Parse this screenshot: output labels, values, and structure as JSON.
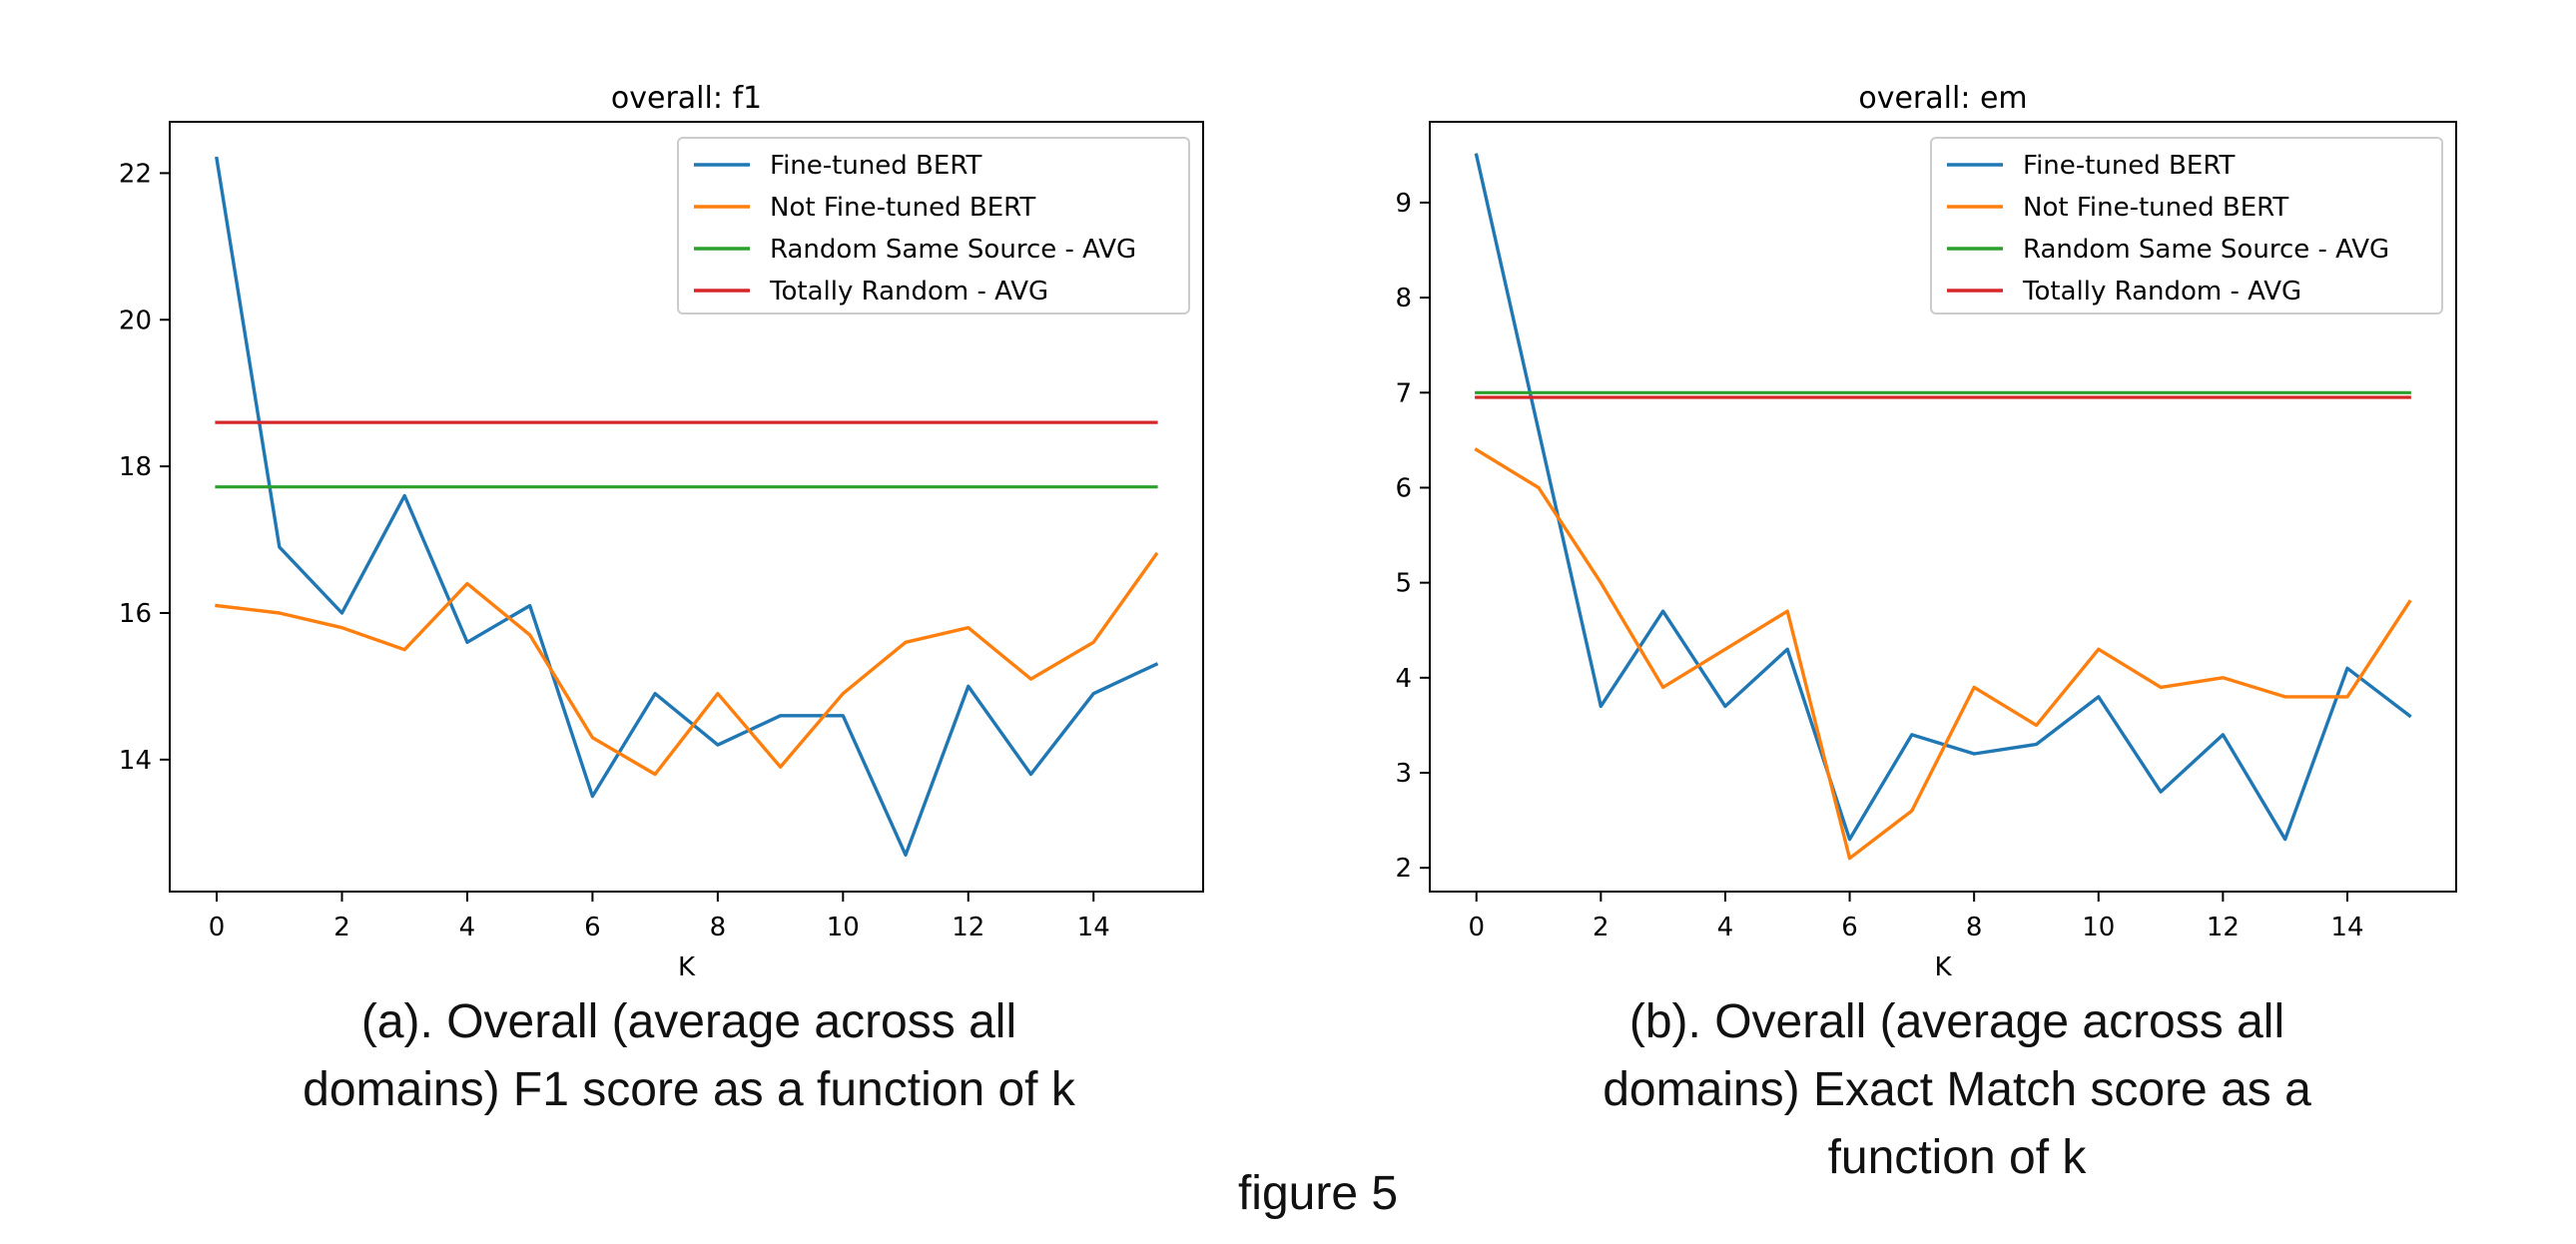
{
  "colors": {
    "fine_tuned": "#1f77b4",
    "not_fine_tuned": "#ff7f0e",
    "random_same_source": "#2ca02c",
    "totally_random": "#d62728"
  },
  "chart_data": [
    {
      "type": "line",
      "title": "overall: f1",
      "xlabel": "K",
      "ylabel": "",
      "xlim": [
        -0.75,
        15.75
      ],
      "ylim": [
        12.2,
        22.7
      ],
      "xticks": [
        0,
        2,
        4,
        6,
        8,
        10,
        12,
        14
      ],
      "yticks": [
        14,
        16,
        18,
        20,
        22
      ],
      "legend_position": "top-right",
      "grid": false,
      "x": [
        0,
        1,
        2,
        3,
        4,
        5,
        6,
        7,
        8,
        9,
        10,
        11,
        12,
        13,
        14,
        15
      ],
      "series": [
        {
          "name": "Fine-tuned BERT",
          "color_key": "fine_tuned",
          "values": [
            22.2,
            16.9,
            16.0,
            17.6,
            15.6,
            16.1,
            13.5,
            14.9,
            14.2,
            14.6,
            14.6,
            12.7,
            15.0,
            13.8,
            14.9,
            15.3
          ]
        },
        {
          "name": "Not Fine-tuned BERT",
          "color_key": "not_fine_tuned",
          "values": [
            16.1,
            16.0,
            15.8,
            15.5,
            16.4,
            15.7,
            14.3,
            13.8,
            14.9,
            13.9,
            14.9,
            15.6,
            15.8,
            15.1,
            15.6,
            16.8
          ]
        },
        {
          "name": "Random Same Source - AVG",
          "color_key": "random_same_source",
          "values": [
            17.72,
            17.72,
            17.72,
            17.72,
            17.72,
            17.72,
            17.72,
            17.72,
            17.72,
            17.72,
            17.72,
            17.72,
            17.72,
            17.72,
            17.72,
            17.72
          ]
        },
        {
          "name": "Totally Random - AVG",
          "color_key": "totally_random",
          "values": [
            18.6,
            18.6,
            18.6,
            18.6,
            18.6,
            18.6,
            18.6,
            18.6,
            18.6,
            18.6,
            18.6,
            18.6,
            18.6,
            18.6,
            18.6,
            18.6
          ]
        }
      ]
    },
    {
      "type": "line",
      "title": "overall: em",
      "xlabel": "K",
      "ylabel": "",
      "xlim": [
        -0.75,
        15.75
      ],
      "ylim": [
        1.75,
        9.85
      ],
      "xticks": [
        0,
        2,
        4,
        6,
        8,
        10,
        12,
        14
      ],
      "yticks": [
        2,
        3,
        4,
        5,
        6,
        7,
        8,
        9
      ],
      "legend_position": "top-right",
      "grid": false,
      "x": [
        0,
        1,
        2,
        3,
        4,
        5,
        6,
        7,
        8,
        9,
        10,
        11,
        12,
        13,
        14,
        15
      ],
      "series": [
        {
          "name": "Fine-tuned BERT",
          "color_key": "fine_tuned",
          "values": [
            9.5,
            6.6,
            3.7,
            4.7,
            3.7,
            4.3,
            2.3,
            3.4,
            3.2,
            3.3,
            3.8,
            2.8,
            3.4,
            2.3,
            4.1,
            3.6
          ]
        },
        {
          "name": "Not Fine-tuned BERT",
          "color_key": "not_fine_tuned",
          "values": [
            6.4,
            6.0,
            5.0,
            3.9,
            4.3,
            4.7,
            2.1,
            2.6,
            3.9,
            3.5,
            4.3,
            3.9,
            4.0,
            3.8,
            3.8,
            4.8
          ]
        },
        {
          "name": "Random Same Source - AVG",
          "color_key": "random_same_source",
          "values": [
            7.0,
            7.0,
            7.0,
            7.0,
            7.0,
            7.0,
            7.0,
            7.0,
            7.0,
            7.0,
            7.0,
            7.0,
            7.0,
            7.0,
            7.0,
            7.0
          ]
        },
        {
          "name": "Totally Random - AVG",
          "color_key": "totally_random",
          "values": [
            6.95,
            6.95,
            6.95,
            6.95,
            6.95,
            6.95,
            6.95,
            6.95,
            6.95,
            6.95,
            6.95,
            6.95,
            6.95,
            6.95,
            6.95,
            6.95
          ]
        }
      ]
    }
  ],
  "captions": {
    "a_line1": "(a). Overall (average across all",
    "a_line2": "domains) F1 score as a function of k",
    "b_line1": "(b). Overall (average across all",
    "b_line2": "domains) Exact Match score as a",
    "b_line3": "function of k"
  },
  "figure_label": "figure 5"
}
